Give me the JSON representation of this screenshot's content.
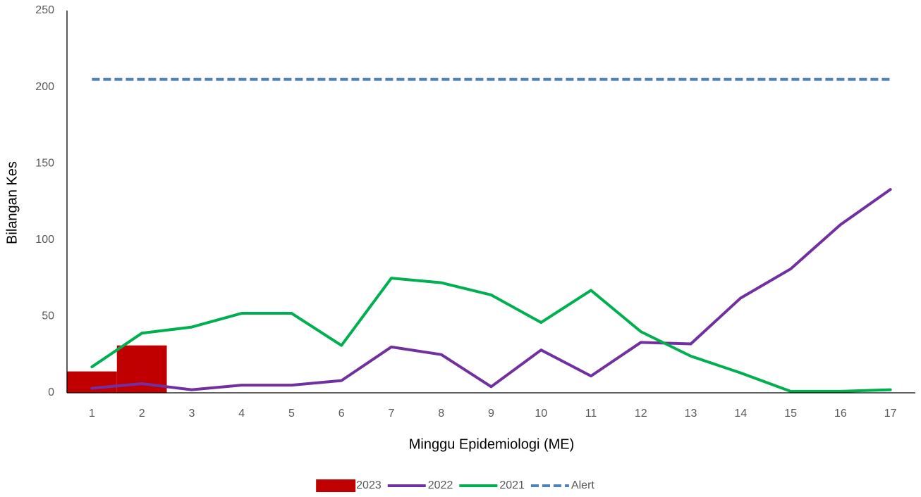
{
  "chart_data": {
    "type": "combo",
    "x_label": "Minggu Epidemiologi (ME)",
    "y_label": "Bilangan Kes",
    "categories": [
      "1",
      "2",
      "3",
      "4",
      "5",
      "6",
      "7",
      "8",
      "9",
      "10",
      "11",
      "12",
      "13",
      "14",
      "15",
      "16",
      "17"
    ],
    "series": [
      {
        "name": "2023",
        "type": "bar",
        "color": "#c00000",
        "values": [
          14,
          31,
          null,
          null,
          null,
          null,
          null,
          null,
          null,
          null,
          null,
          null,
          null,
          null,
          null,
          null,
          null
        ]
      },
      {
        "name": "2022",
        "type": "line",
        "color": "#7030a0",
        "values": [
          3,
          6,
          2,
          5,
          5,
          8,
          30,
          25,
          4,
          28,
          11,
          33,
          32,
          62,
          81,
          110,
          133
        ]
      },
      {
        "name": "2021",
        "type": "line",
        "color": "#00b050",
        "values": [
          17,
          39,
          43,
          52,
          52,
          31,
          75,
          72,
          64,
          46,
          67,
          40,
          24,
          13,
          1,
          1,
          2
        ]
      },
      {
        "name": "Alert",
        "type": "line",
        "style": "dashed",
        "color": "#4f81bd",
        "values": [
          205,
          205,
          205,
          205,
          205,
          205,
          205,
          205,
          205,
          205,
          205,
          205,
          205,
          205,
          205,
          205,
          205
        ]
      }
    ],
    "ylim": [
      0,
      250
    ],
    "yticks": [
      0,
      50,
      100,
      150,
      200,
      250
    ],
    "grid": false,
    "legend": "bottom"
  }
}
